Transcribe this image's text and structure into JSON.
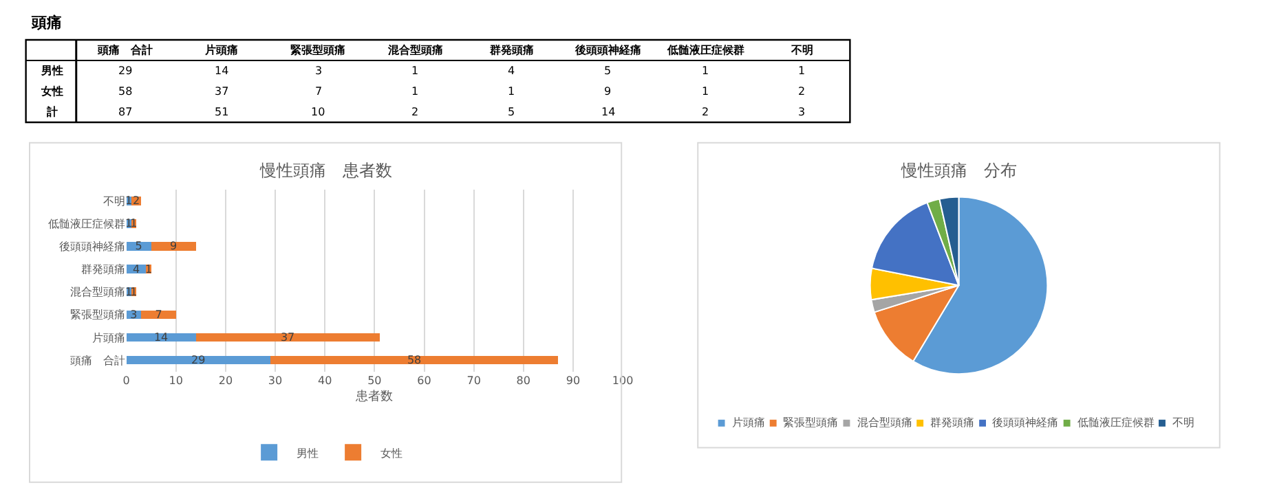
{
  "chart_data": [
    {
      "type": "heatmap",
      "title": "頭痛",
      "categories": [
        "頭痛　合計",
        "片頭痛",
        "緊張型頭痛",
        "混合型頭痛",
        "群発頭痛",
        "後頭頭神経痛",
        "低髄液圧症候群",
        "不明"
      ],
      "y_categories": [
        "男性",
        "女性",
        "計"
      ],
      "cells": [
        [
          29,
          14,
          3,
          1,
          4,
          5,
          1,
          1
        ],
        [
          58,
          37,
          7,
          1,
          1,
          9,
          1,
          2
        ],
        [
          87,
          51,
          10,
          2,
          5,
          14,
          2,
          3
        ]
      ],
      "data_labels": true
    },
    {
      "type": "bar",
      "orientation": "horizontal",
      "stacked": true,
      "title": "慢性頭痛　患者数",
      "xlabel": "患者数",
      "categories": [
        "不明",
        "低髄液圧症候群",
        "後頭頭神経痛",
        "群発頭痛",
        "混合型頭痛",
        "緊張型頭痛",
        "片頭痛",
        "頭痛　合計"
      ],
      "series": [
        {
          "name": "男性",
          "color": "#5b9bd5",
          "values": [
            1,
            1,
            5,
            4,
            1,
            3,
            14,
            29
          ]
        },
        {
          "name": "女性",
          "color": "#ed7d31",
          "values": [
            2,
            1,
            9,
            1,
            1,
            7,
            37,
            58
          ]
        }
      ],
      "xlim": [
        0,
        100
      ],
      "xticks": [
        0,
        10,
        20,
        30,
        40,
        50,
        60,
        70,
        80,
        90,
        100
      ],
      "grid": "x",
      "legend": "bottom",
      "data_labels": true
    },
    {
      "type": "pie",
      "title": "慢性頭痛　分布",
      "categories": [
        "片頭痛",
        "緊張型頭痛",
        "混合型頭痛",
        "群発頭痛",
        "後頭頭神経痛",
        "低髄液圧症候群",
        "不明"
      ],
      "values": [
        58.6,
        11.5,
        2.3,
        5.7,
        16.1,
        2.3,
        3.5
      ],
      "colors": [
        "#5b9bd5",
        "#ed7d31",
        "#a5a5a5",
        "#ffc000",
        "#4472c4",
        "#70ad47",
        "#255e91"
      ],
      "legend": "bottom"
    }
  ]
}
